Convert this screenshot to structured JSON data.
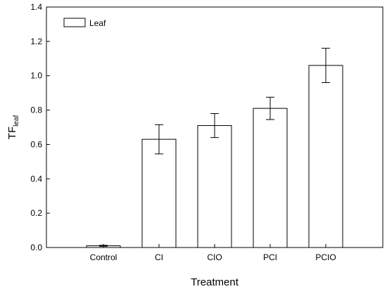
{
  "chart_data": {
    "type": "bar",
    "title": "",
    "categories": [
      "Control",
      "CI",
      "CIO",
      "PCI",
      "PCIO"
    ],
    "series": [
      {
        "name": "Leaf",
        "values": [
          0.01,
          0.63,
          0.71,
          0.81,
          1.06
        ],
        "errors": [
          0.003,
          0.085,
          0.07,
          0.065,
          0.1
        ]
      }
    ],
    "xlabel": "Treatment",
    "ylabel": {
      "main": "TF",
      "subscript": "leaf"
    },
    "ylim": [
      0,
      1.4
    ],
    "yticks": [
      "0.0",
      "0.2",
      "0.4",
      "0.6",
      "0.8",
      "1.0",
      "1.2",
      "1.4"
    ],
    "grid": false,
    "legend_position": "top-left",
    "bar_fill": "#ffffff",
    "bar_stroke": "#000000"
  }
}
